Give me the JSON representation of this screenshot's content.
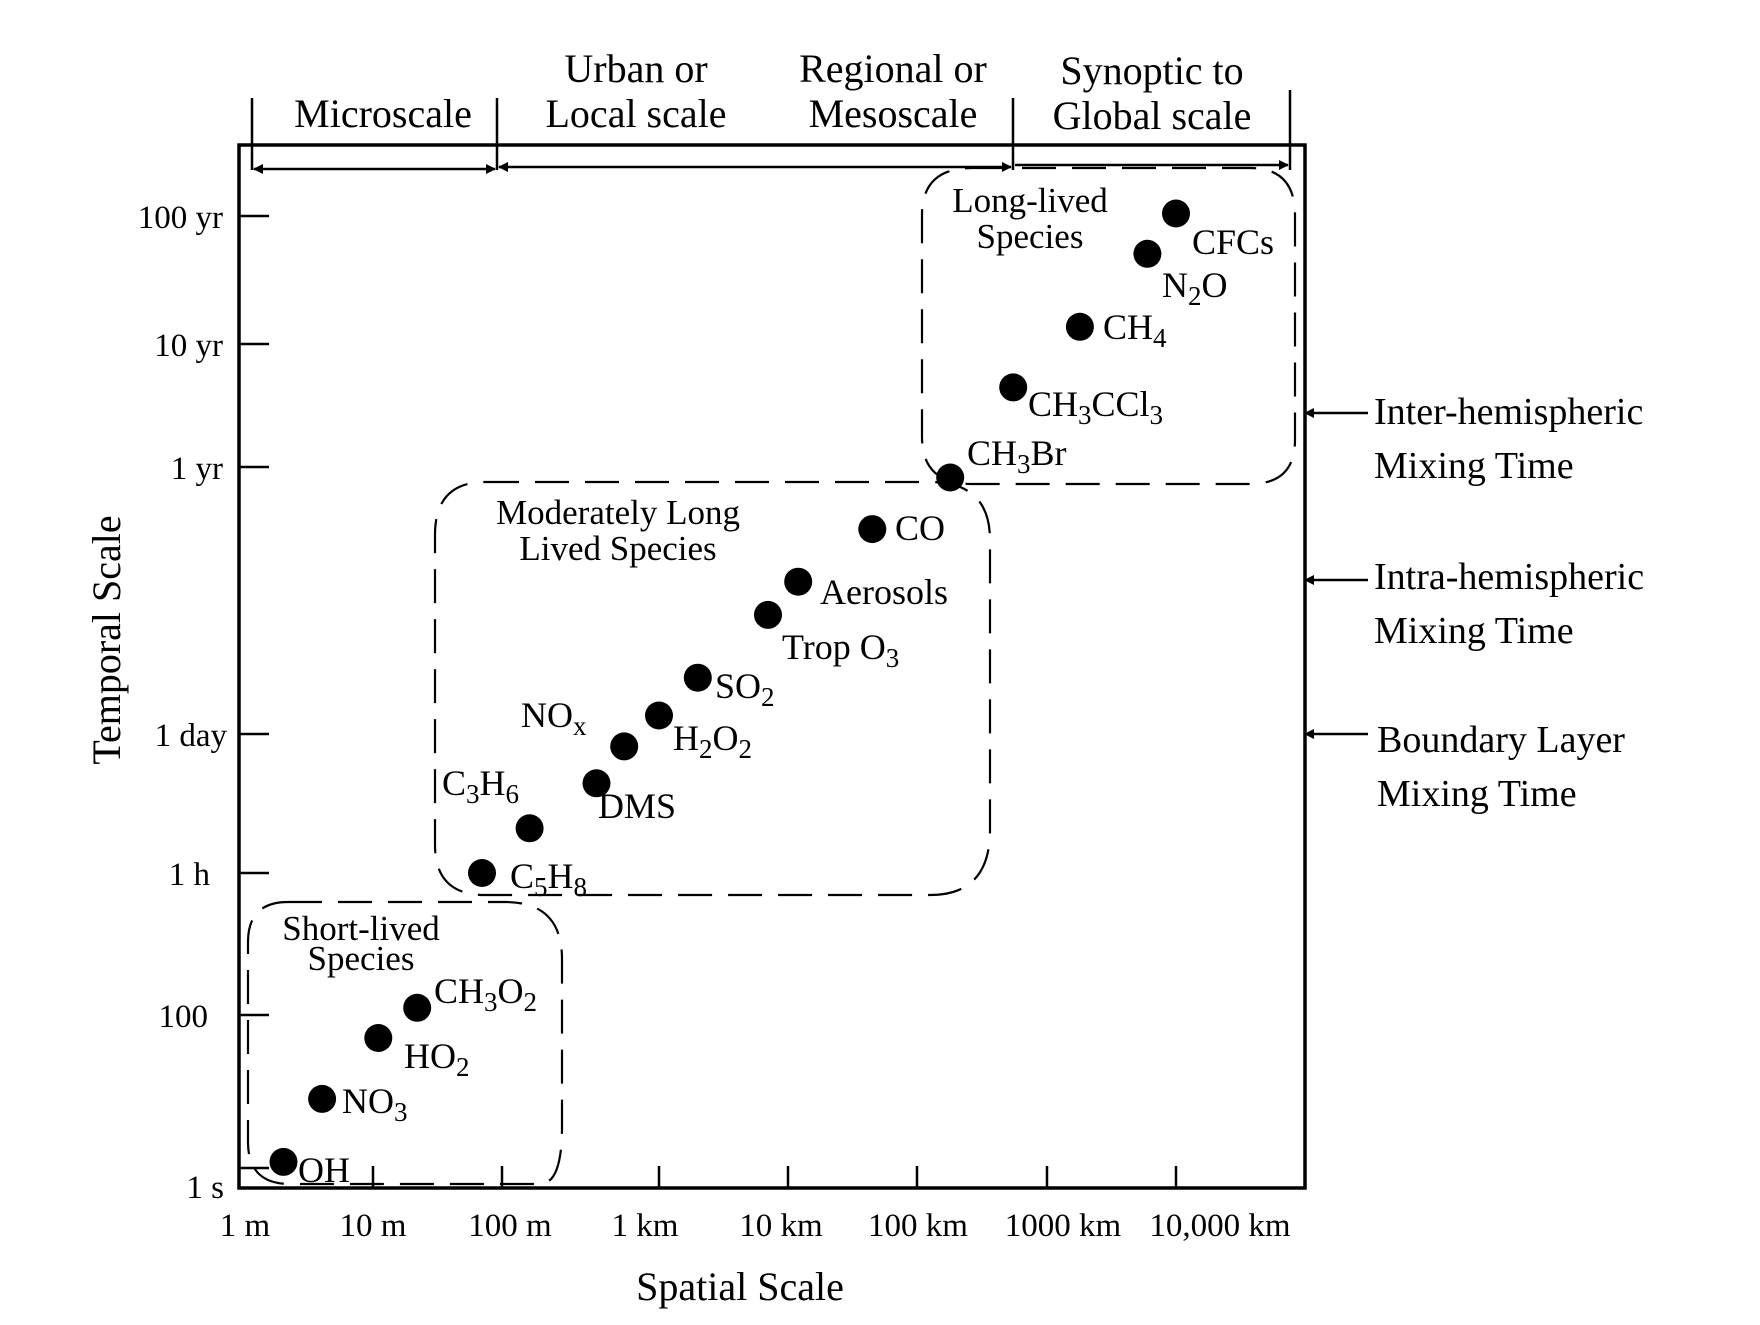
{
  "chart_data": {
    "type": "scatter",
    "xlabel": "Spatial Scale",
    "ylabel": "Temporal Scale",
    "x_ticks": [
      "1 m",
      "10 m",
      "100 m",
      "1 km",
      "10 km",
      "100 km",
      "1000 km",
      "10,000 km"
    ],
    "y_ticks": [
      "1 s",
      "100",
      "1 h",
      "1 day",
      "1 yr",
      "10 yr",
      "100 yr"
    ],
    "scale_regions": [
      {
        "lines": [
          "",
          "Microscale"
        ],
        "x_from": "1 m",
        "x_to": "100 m"
      },
      {
        "lines": [
          "Urban or",
          "Local scale"
        ],
        "x_from": "100 m",
        "x_to": "1000 km"
      },
      {
        "lines": [
          "Regional or",
          "Mesoscale"
        ],
        "x_from": "100 m",
        "x_to": "1000 km"
      },
      {
        "lines": [
          "Synoptic to",
          "Global scale"
        ],
        "x_from": "1000 km",
        "x_to": "10,000 km"
      }
    ],
    "groups": [
      {
        "lines": [
          "Short-lived",
          "Species"
        ]
      },
      {
        "lines": [
          "Moderately Long",
          "Lived Species"
        ]
      },
      {
        "lines": [
          "Long-lived",
          "Species"
        ]
      }
    ],
    "species": [
      {
        "label": "OH",
        "x_m": 2,
        "y_s": 1.2
      },
      {
        "label": "NO3",
        "x_m": 4,
        "y_s": 8
      },
      {
        "label": "HO2",
        "x_m": 11,
        "y_s": 50
      },
      {
        "label": "CH3O2",
        "x_m": 22,
        "y_s": 120
      },
      {
        "label": "C5H8",
        "x_m": 70,
        "y_s": 3600
      },
      {
        "label": "C3H6",
        "x_m": 150,
        "y_s": 10000
      },
      {
        "label": "DMS",
        "x_m": 400,
        "y_s": 28000
      },
      {
        "label": "NOx",
        "x_m": 600,
        "y_s": 65000
      },
      {
        "label": "H2O2",
        "x_m": 1000,
        "y_s": 130000
      },
      {
        "label": "SO2",
        "x_m": 2000,
        "y_s": 300000
      },
      {
        "label": "Trop O3",
        "x_m": 7000,
        "y_s": 1200000
      },
      {
        "label": "Aerosols",
        "x_m": 12000,
        "y_s": 2500000
      },
      {
        "label": "CO",
        "x_m": 45000,
        "y_s": 8000000
      },
      {
        "label": "CH3Br",
        "x_m": 180000,
        "y_s": 25000000
      },
      {
        "label": "CH3CCl3",
        "x_m": 550000,
        "y_s": 140000000
      },
      {
        "label": "CH4",
        "x_m": 1800000,
        "y_s": 430000000
      },
      {
        "label": "N2O",
        "x_m": 6000000,
        "y_s": 1600000000
      },
      {
        "label": "CFCs",
        "x_m": 10000000,
        "y_s": 3300000000
      }
    ],
    "mixing_times": [
      {
        "lines": [
          "Inter-hemispheric",
          "Mixing Time"
        ]
      },
      {
        "lines": [
          "Intra-hemispheric",
          "Mixing Time"
        ]
      },
      {
        "lines": [
          "Boundary Layer",
          "Mixing Time"
        ]
      }
    ]
  }
}
